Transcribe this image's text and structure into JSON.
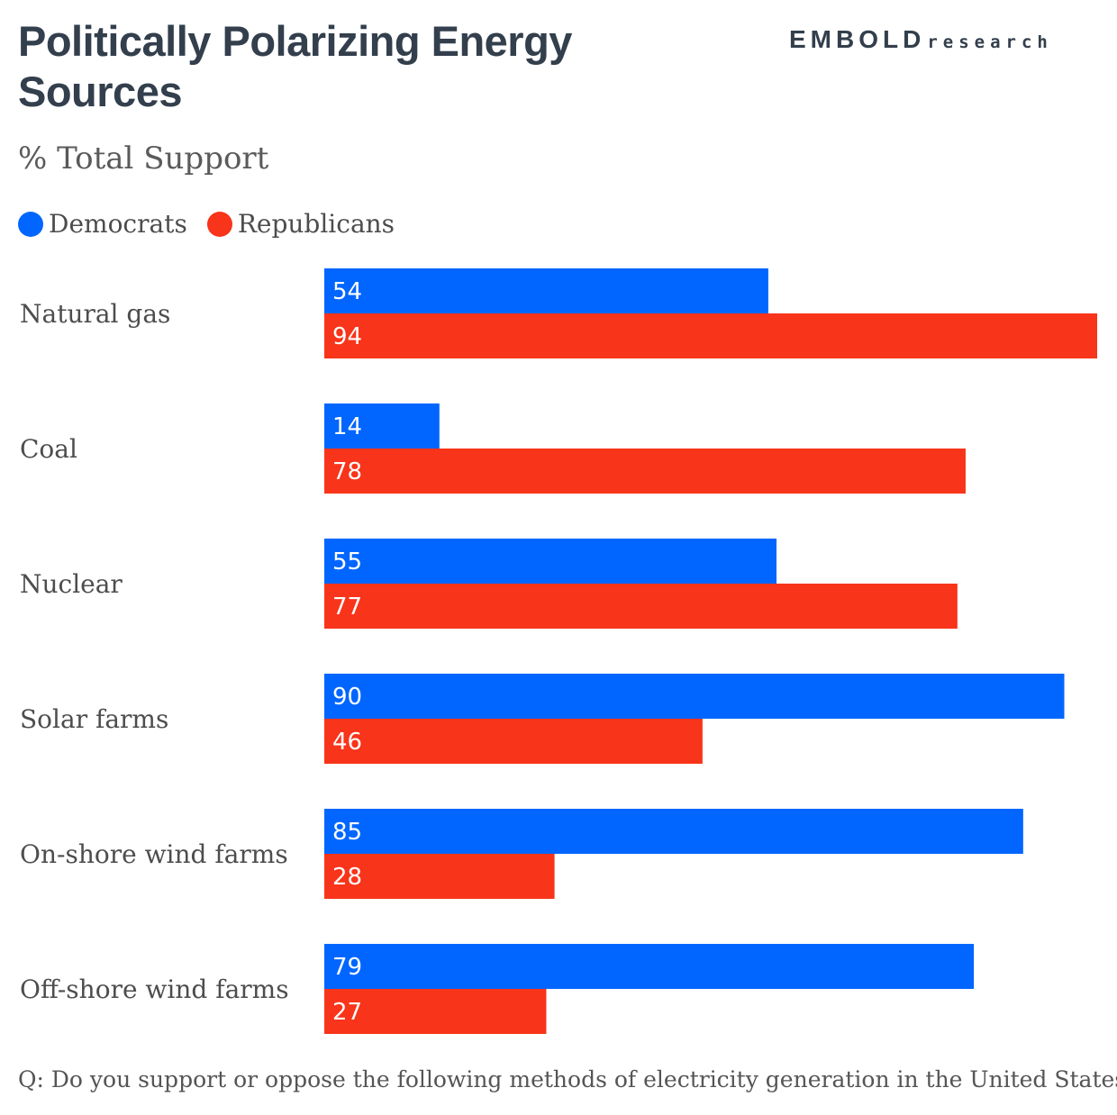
{
  "header": {
    "title": "Politically Polarizing Energy Sources",
    "logo_main": "EMBOLD",
    "logo_sub": "research"
  },
  "footnote": "Q: Do you support or oppose the following methods of electricity generation in the United States?",
  "colors": {
    "democrats": "#0066ff",
    "republicans": "#f8341a",
    "title": "#333f4c",
    "label": "#4d4d4d"
  },
  "chart_data": {
    "type": "bar",
    "orientation": "horizontal",
    "title": "Politically Polarizing Energy Sources",
    "subtitle": "% Total Support",
    "categories": [
      "Natural gas",
      "Coal",
      "Nuclear",
      "Solar farms",
      "On-shore wind farms",
      "Off-shore wind farms"
    ],
    "series": [
      {
        "name": "Democrats",
        "color": "#0066ff",
        "values": [
          54,
          14,
          55,
          90,
          85,
          79
        ]
      },
      {
        "name": "Republicans",
        "color": "#f8341a",
        "values": [
          94,
          78,
          77,
          46,
          28,
          27
        ]
      }
    ],
    "xlim": [
      0,
      94
    ],
    "grid": false,
    "legend": "top-left"
  }
}
